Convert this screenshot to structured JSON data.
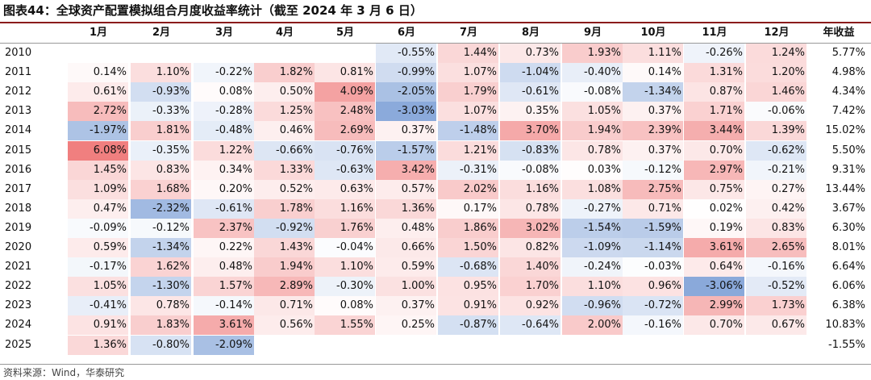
{
  "title": "图表44：全球资产配置模拟组合月度收益率统计（截至 2024 年 3 月 6 日）",
  "source": "资料来源：Wind，华泰研究",
  "chart_data": {
    "type": "heatmap",
    "title": "全球资产配置模拟组合月度收益率统计（截至 2024 年 3 月 6 日）",
    "x": [
      "1月",
      "2月",
      "3月",
      "4月",
      "5月",
      "6月",
      "7月",
      "8月",
      "9月",
      "10月",
      "11月",
      "12月"
    ],
    "annual_header": "年收益",
    "y": [
      "2010",
      "2011",
      "2012",
      "2013",
      "2014",
      "2015",
      "2016",
      "2017",
      "2018",
      "2019",
      "2020",
      "2021",
      "2022",
      "2023",
      "2024",
      "2025"
    ],
    "unit": "%",
    "z": [
      [
        null,
        null,
        null,
        null,
        null,
        -0.55,
        1.44,
        0.73,
        1.93,
        1.11,
        -0.26,
        1.24
      ],
      [
        0.14,
        1.1,
        -0.22,
        1.82,
        0.81,
        -0.99,
        1.07,
        -1.04,
        -0.4,
        0.14,
        1.31,
        1.2
      ],
      [
        0.61,
        -0.93,
        0.08,
        0.5,
        4.09,
        -2.05,
        1.79,
        -0.61,
        -0.08,
        -1.34,
        0.87,
        1.46
      ],
      [
        2.72,
        -0.33,
        -0.28,
        1.25,
        2.48,
        -3.03,
        1.07,
        0.35,
        1.05,
        0.37,
        1.71,
        -0.06
      ],
      [
        -1.97,
        1.81,
        -0.48,
        0.46,
        2.69,
        0.37,
        -1.48,
        3.7,
        1.94,
        2.39,
        3.44,
        1.39
      ],
      [
        6.08,
        -0.35,
        1.22,
        -0.66,
        -0.76,
        -1.57,
        1.21,
        -0.83,
        0.78,
        0.37,
        0.7,
        -0.62
      ],
      [
        1.45,
        0.83,
        0.34,
        1.33,
        -0.63,
        3.42,
        -0.31,
        -0.08,
        0.03,
        -0.12,
        2.97,
        -0.21
      ],
      [
        1.09,
        1.68,
        0.2,
        0.52,
        0.63,
        0.57,
        2.02,
        1.16,
        1.08,
        2.75,
        0.75,
        0.27
      ],
      [
        0.47,
        -2.32,
        -0.61,
        1.78,
        1.16,
        1.36,
        0.17,
        0.78,
        -0.27,
        0.71,
        0.02,
        0.42
      ],
      [
        -0.09,
        -0.12,
        2.37,
        -0.92,
        1.76,
        0.48,
        1.86,
        3.02,
        -1.54,
        -1.59,
        0.19,
        0.83
      ],
      [
        0.59,
        -1.34,
        0.22,
        1.43,
        -0.04,
        0.66,
        1.5,
        0.82,
        -1.09,
        -1.14,
        3.61,
        2.65
      ],
      [
        -0.17,
        1.62,
        0.48,
        1.94,
        1.1,
        0.59,
        -0.68,
        1.4,
        -0.24,
        -0.03,
        0.64,
        -0.16
      ],
      [
        1.05,
        -1.3,
        1.57,
        2.89,
        -0.3,
        1.0,
        0.95,
        1.7,
        1.1,
        0.96,
        -3.06,
        -0.52
      ],
      [
        -0.41,
        0.78,
        -0.14,
        0.71,
        0.08,
        0.37,
        0.91,
        0.92,
        -0.96,
        -0.72,
        2.99,
        1.73
      ],
      [
        0.91,
        1.83,
        3.61,
        0.56,
        1.55,
        0.25,
        -0.87,
        -0.64,
        2.0,
        -0.16,
        0.7,
        0.67
      ],
      [
        1.36,
        -0.8,
        -2.09,
        null,
        null,
        null,
        null,
        null,
        null,
        null,
        null,
        null
      ]
    ],
    "annual": [
      5.77,
      4.98,
      4.34,
      7.42,
      15.02,
      5.5,
      9.31,
      13.44,
      3.67,
      6.3,
      8.01,
      6.64,
      6.06,
      6.38,
      10.83,
      -1.55
    ],
    "colors": {
      "positive": "#f07f7f",
      "negative": "#4f7ec8",
      "neutral": "#ffffff"
    }
  }
}
